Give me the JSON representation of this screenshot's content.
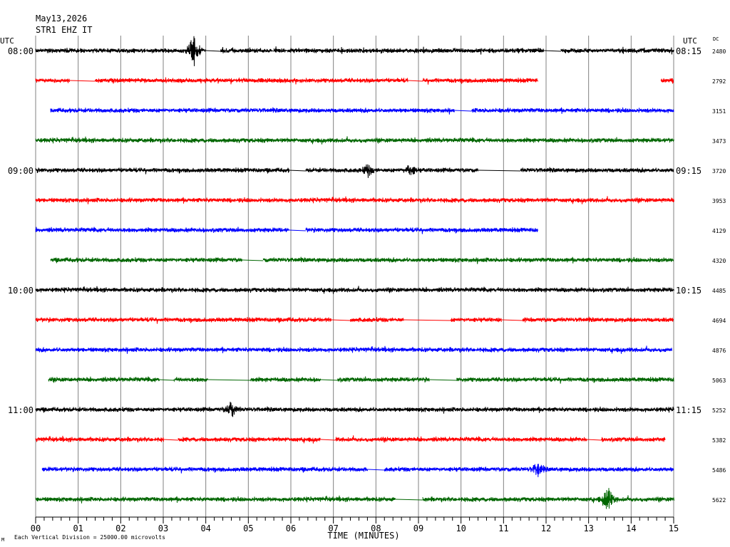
{
  "chart_data": {
    "type": "line",
    "title": "May13,2026",
    "subtitle": "STR1 EHZ IT",
    "left_axis_label": "UTC",
    "right_axis_label": "UTC",
    "right_column_label": "DC",
    "xlabel": "TIME (MINUTES)",
    "footer": "Each Vertical Division = 25000.00 microvolts",
    "footer_mark": "M",
    "xlim": [
      0,
      15
    ],
    "x_ticks": [
      "00",
      "01",
      "02",
      "03",
      "04",
      "05",
      "06",
      "07",
      "08",
      "09",
      "10",
      "11",
      "12",
      "13",
      "14",
      "15"
    ],
    "grid": true,
    "trace_colors": [
      "#000000",
      "#ff0000",
      "#0000ff",
      "#006600"
    ],
    "rows": [
      {
        "left_time": "08:00",
        "right_time": "08:15",
        "dc": "2480",
        "color": "#000000",
        "segments": [
          [
            0,
            4
          ],
          [
            4.35,
            5.55
          ],
          [
            5.6,
            11.95
          ],
          [
            12.35,
            15
          ]
        ],
        "events": [
          {
            "t": 3.7,
            "amp": 28
          }
        ]
      },
      {
        "left_time": "",
        "right_time": "",
        "dc": "2792",
        "color": "#ff0000",
        "segments": [
          [
            0,
            0.8
          ],
          [
            1.4,
            8.75
          ],
          [
            9.1,
            11.8
          ],
          [
            14.7,
            15
          ]
        ],
        "events": []
      },
      {
        "left_time": "",
        "right_time": "",
        "dc": "3151",
        "color": "#0000ff",
        "segments": [
          [
            0.35,
            9.85
          ],
          [
            10.25,
            15
          ]
        ],
        "events": []
      },
      {
        "left_time": "",
        "right_time": "",
        "dc": "3473",
        "color": "#006600",
        "segments": [
          [
            0,
            15
          ]
        ],
        "events": []
      },
      {
        "left_time": "09:00",
        "right_time": "09:15",
        "dc": "3720",
        "color": "#000000",
        "segments": [
          [
            0,
            5.95
          ],
          [
            6.35,
            10.4
          ],
          [
            11.4,
            15
          ]
        ],
        "events": [
          {
            "t": 7.8,
            "amp": 9
          },
          {
            "t": 8.8,
            "amp": 10
          }
        ]
      },
      {
        "left_time": "",
        "right_time": "",
        "dc": "3953",
        "color": "#ff0000",
        "segments": [
          [
            0,
            15
          ]
        ],
        "events": []
      },
      {
        "left_time": "",
        "right_time": "",
        "dc": "4129",
        "color": "#0000ff",
        "segments": [
          [
            0,
            5.95
          ],
          [
            6.35,
            11.8
          ]
        ],
        "events": []
      },
      {
        "left_time": "",
        "right_time": "",
        "dc": "4320",
        "color": "#006600",
        "segments": [
          [
            0.35,
            4.85
          ],
          [
            5.35,
            15
          ]
        ],
        "events": []
      },
      {
        "left_time": "10:00",
        "right_time": "10:15",
        "dc": "4485",
        "color": "#000000",
        "segments": [
          [
            0,
            15
          ]
        ],
        "events": []
      },
      {
        "left_time": "",
        "right_time": "",
        "dc": "4694",
        "color": "#ff0000",
        "segments": [
          [
            0,
            6.95
          ],
          [
            7.4,
            8.65
          ],
          [
            9.75,
            10.95
          ],
          [
            11.45,
            15
          ]
        ],
        "events": []
      },
      {
        "left_time": "",
        "right_time": "",
        "dc": "4876",
        "color": "#0000ff",
        "segments": [
          [
            0,
            14.95
          ]
        ],
        "events": []
      },
      {
        "left_time": "",
        "right_time": "",
        "dc": "5063",
        "color": "#006600",
        "segments": [
          [
            0.3,
            2.9
          ],
          [
            3.25,
            4.05
          ],
          [
            5.05,
            6.7
          ],
          [
            7.1,
            9.25
          ],
          [
            9.9,
            15
          ]
        ],
        "events": []
      },
      {
        "left_time": "11:00",
        "right_time": "11:15",
        "dc": "5252",
        "color": "#000000",
        "segments": [
          [
            0,
            15
          ]
        ],
        "events": [
          {
            "t": 4.6,
            "amp": 13
          }
        ]
      },
      {
        "left_time": "",
        "right_time": "",
        "dc": "5382",
        "color": "#ff0000",
        "segments": [
          [
            0,
            3
          ],
          [
            3.35,
            6.7
          ],
          [
            7.05,
            12.95
          ],
          [
            13.3,
            14.8
          ]
        ],
        "events": []
      },
      {
        "left_time": "",
        "right_time": "",
        "dc": "5486",
        "color": "#0000ff",
        "segments": [
          [
            0.15,
            7.8
          ],
          [
            8.2,
            15
          ]
        ],
        "events": [
          {
            "t": 11.8,
            "amp": 12
          }
        ]
      },
      {
        "left_time": "",
        "right_time": "",
        "dc": "5622",
        "color": "#006600",
        "segments": [
          [
            0,
            8.45
          ],
          [
            9.1,
            15
          ]
        ],
        "events": [
          {
            "t": 13.45,
            "amp": 22
          }
        ]
      }
    ]
  }
}
